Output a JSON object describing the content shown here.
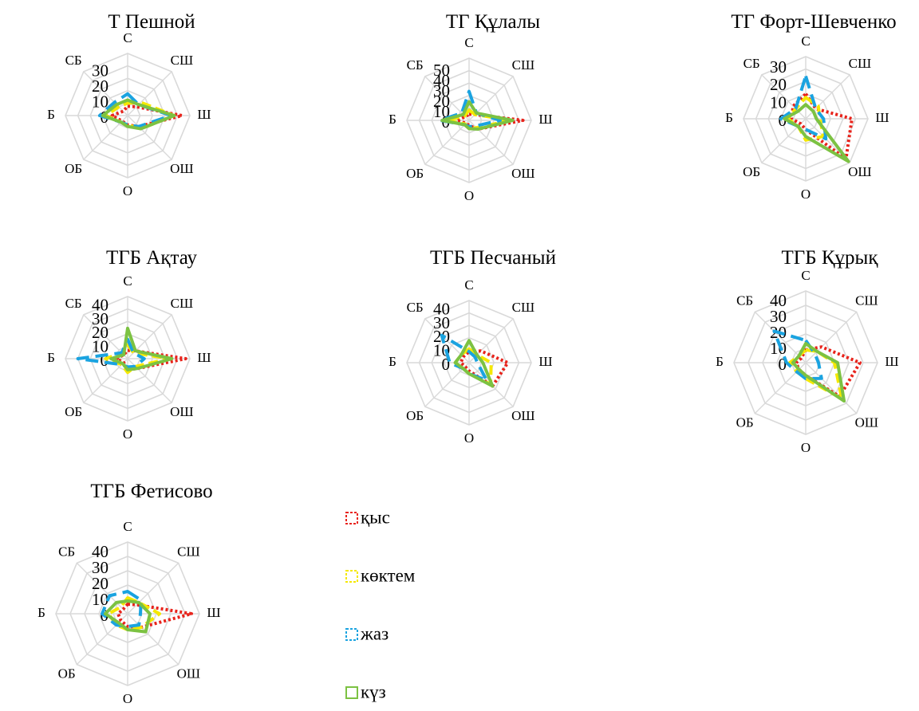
{
  "colors": {
    "grid": "#d9d9d9",
    "winter": "#e8231b",
    "spring": "#f5e800",
    "summer": "#1aa3e0",
    "autumn": "#7cc242"
  },
  "legend": [
    {
      "key": "winter",
      "label": "қыс",
      "dash": "3,3"
    },
    {
      "key": "spring",
      "label": "көктем",
      "dash": "12,6"
    },
    {
      "key": "summer",
      "label": "жаз",
      "dash": "16,8"
    },
    {
      "key": "autumn",
      "label": "күз",
      "dash": "none"
    }
  ],
  "chart_data": [
    {
      "type": "radar",
      "title": "Т Пешной",
      "directions": [
        "С",
        "СШ",
        "Ш",
        "ОШ",
        "О",
        "ОБ",
        "Б",
        "СБ"
      ],
      "ticks": [
        "0",
        "10",
        "20",
        "30"
      ],
      "rmax": 40,
      "grid": true,
      "series": [
        {
          "key": "winter",
          "values": [
            6,
            8,
            35,
            10,
            6,
            5,
            10,
            4
          ]
        },
        {
          "key": "spring",
          "values": [
            8,
            12,
            30,
            12,
            6,
            6,
            14,
            8
          ]
        },
        {
          "key": "summer",
          "values": [
            14,
            10,
            28,
            10,
            6,
            6,
            18,
            12
          ]
        },
        {
          "key": "autumn",
          "values": [
            10,
            10,
            30,
            12,
            7,
            6,
            16,
            10
          ]
        }
      ]
    },
    {
      "type": "radar",
      "title": "ТГ Құлалы",
      "directions": [
        "С",
        "СШ",
        "Ш",
        "ОШ",
        "О",
        "ОБ",
        "Б",
        "СБ"
      ],
      "ticks": [
        "0",
        "10",
        "20",
        "30",
        "40",
        "50"
      ],
      "rmax": 60,
      "grid": true,
      "series": [
        {
          "key": "winter",
          "values": [
            6,
            8,
            52,
            12,
            5,
            4,
            12,
            5
          ]
        },
        {
          "key": "spring",
          "values": [
            10,
            8,
            40,
            10,
            8,
            5,
            22,
            6
          ]
        },
        {
          "key": "summer",
          "values": [
            28,
            10,
            30,
            8,
            6,
            6,
            28,
            10
          ]
        },
        {
          "key": "autumn",
          "values": [
            18,
            10,
            42,
            12,
            8,
            6,
            26,
            8
          ]
        }
      ]
    },
    {
      "type": "radar",
      "title": "ТГ Форт-Шевченко",
      "directions": [
        "С",
        "СШ",
        "Ш",
        "ОШ",
        "О",
        "ОБ",
        "Б",
        "СБ"
      ],
      "ticks": [
        "0",
        "10",
        "20",
        "30"
      ],
      "rmax": 35,
      "grid": true,
      "series": [
        {
          "key": "winter",
          "values": [
            14,
            8,
            26,
            32,
            6,
            4,
            8,
            10
          ]
        },
        {
          "key": "spring",
          "values": [
            12,
            10,
            8,
            14,
            12,
            6,
            10,
            8
          ]
        },
        {
          "key": "summer",
          "values": [
            24,
            8,
            10,
            16,
            6,
            6,
            14,
            8
          ]
        },
        {
          "key": "autumn",
          "values": [
            8,
            6,
            6,
            34,
            10,
            6,
            12,
            6
          ]
        }
      ]
    },
    {
      "type": "radar",
      "title": "ТГБ Ақтау",
      "directions": [
        "С",
        "СШ",
        "Ш",
        "ОШ",
        "О",
        "ОБ",
        "Б",
        "СБ"
      ],
      "ticks": [
        "0",
        "10",
        "20",
        "30",
        "40"
      ],
      "rmax": 45,
      "grid": true,
      "series": [
        {
          "key": "winter",
          "values": [
            6,
            8,
            42,
            10,
            8,
            4,
            8,
            4
          ]
        },
        {
          "key": "spring",
          "values": [
            10,
            6,
            30,
            8,
            10,
            6,
            16,
            6
          ]
        },
        {
          "key": "summer",
          "values": [
            14,
            6,
            12,
            8,
            6,
            6,
            36,
            6
          ]
        },
        {
          "key": "autumn",
          "values": [
            22,
            8,
            32,
            10,
            8,
            5,
            12,
            4
          ]
        }
      ]
    },
    {
      "type": "radar",
      "title": "ТГБ Песчаный",
      "directions": [
        "С",
        "СШ",
        "Ш",
        "ОШ",
        "О",
        "ОБ",
        "Б",
        "СБ"
      ],
      "ticks": [
        "0",
        "10",
        "20",
        "30",
        "40"
      ],
      "rmax": 45,
      "grid": true,
      "series": [
        {
          "key": "winter",
          "values": [
            8,
            12,
            28,
            24,
            6,
            4,
            6,
            6
          ]
        },
        {
          "key": "spring",
          "values": [
            10,
            8,
            16,
            22,
            8,
            6,
            10,
            8
          ]
        },
        {
          "key": "summer",
          "values": [
            8,
            6,
            6,
            18,
            8,
            6,
            14,
            28
          ]
        },
        {
          "key": "autumn",
          "values": [
            16,
            8,
            10,
            24,
            8,
            6,
            10,
            8
          ]
        }
      ]
    },
    {
      "type": "radar",
      "title": "ТГБ Құрық",
      "directions": [
        "С",
        "СШ",
        "Ш",
        "ОШ",
        "О",
        "ОБ",
        "Б",
        "СБ"
      ],
      "ticks": [
        "0",
        "10",
        "20",
        "30",
        "40"
      ],
      "rmax": 45,
      "grid": true,
      "series": [
        {
          "key": "winter",
          "values": [
            8,
            14,
            34,
            30,
            8,
            6,
            6,
            4
          ]
        },
        {
          "key": "spring",
          "values": [
            8,
            10,
            18,
            32,
            10,
            8,
            10,
            6
          ]
        },
        {
          "key": "summer",
          "values": [
            14,
            8,
            8,
            14,
            10,
            8,
            12,
            28
          ]
        },
        {
          "key": "autumn",
          "values": [
            12,
            10,
            20,
            34,
            8,
            6,
            8,
            6
          ]
        }
      ]
    },
    {
      "type": "radar",
      "title": "ТГБ Фетисово",
      "directions": [
        "С",
        "СШ",
        "Ш",
        "ОШ",
        "О",
        "ОБ",
        "Б",
        "СБ"
      ],
      "ticks": [
        "0",
        "10",
        "20",
        "30",
        "40"
      ],
      "rmax": 45,
      "grid": true,
      "series": [
        {
          "key": "winter",
          "values": [
            6,
            8,
            40,
            12,
            8,
            6,
            6,
            4
          ]
        },
        {
          "key": "spring",
          "values": [
            10,
            10,
            20,
            12,
            10,
            10,
            12,
            6
          ]
        },
        {
          "key": "summer",
          "values": [
            14,
            12,
            8,
            10,
            8,
            10,
            16,
            16
          ]
        },
        {
          "key": "autumn",
          "values": [
            8,
            10,
            14,
            16,
            10,
            8,
            14,
            10
          ]
        }
      ]
    }
  ]
}
